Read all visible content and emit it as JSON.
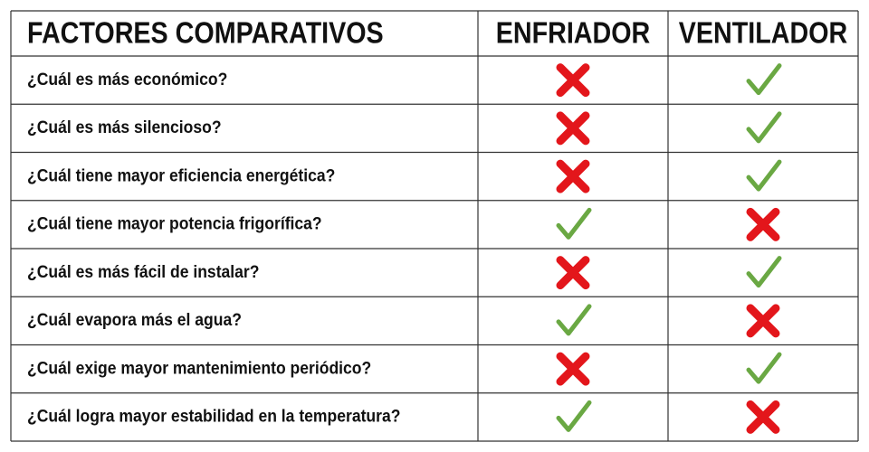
{
  "table": {
    "header": [
      "FACTORES COMPARATIVOS",
      "ENFRIADOR",
      "VENTILADOR"
    ],
    "rows": [
      {
        "question": "¿Cuál es más económico?",
        "enfriador": false,
        "ventilador": true
      },
      {
        "question": "¿Cuál es más silencioso?",
        "enfriador": false,
        "ventilador": true
      },
      {
        "question": "¿Cuál tiene mayor eficiencia energética?",
        "enfriador": false,
        "ventilador": true
      },
      {
        "question": "¿Cuál tiene mayor potencia frigorífica?",
        "enfriador": true,
        "ventilador": false
      },
      {
        "question": "¿Cuál es más fácil de instalar?",
        "enfriador": false,
        "ventilador": true
      },
      {
        "question": "¿Cuál evapora más el agua?",
        "enfriador": true,
        "ventilador": false
      },
      {
        "question": "¿Cuál exige mayor mantenimiento periódico?",
        "enfriador": false,
        "ventilador": true
      },
      {
        "question": "¿Cuál logra mayor estabilidad en la temperatura?",
        "enfriador": true,
        "ventilador": false
      }
    ]
  }
}
